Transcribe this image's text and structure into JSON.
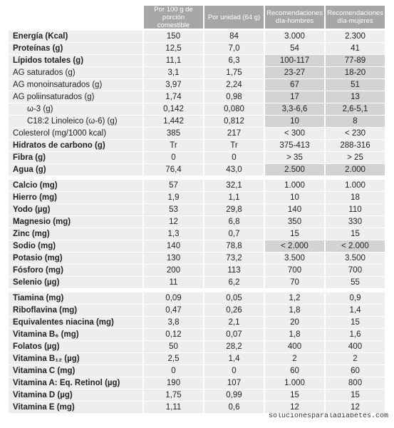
{
  "table": {
    "columns": [
      "Por 100 g de porción comestible",
      "Por unidad (64 g)",
      "Recomendaciones día-hombres",
      "Recomendaciones día-mujeres"
    ],
    "sections": [
      {
        "rows": [
          {
            "label": "Energía (Kcal)",
            "values": [
              "150",
              "84",
              "3.000",
              "2.300"
            ]
          },
          {
            "label": "Proteínas (g)",
            "values": [
              "12,5",
              "7,0",
              "54",
              "41"
            ]
          },
          {
            "label": "Lípidos totales (g)",
            "values": [
              "11,1",
              "6,3",
              "100-117",
              "77-89"
            ]
          },
          {
            "label": "AG saturados (g)",
            "values": [
              "3,1",
              "1,75",
              "23-27",
              "18-20"
            ]
          },
          {
            "label": "AG monoinsaturados (g)",
            "values": [
              "3,97",
              "2,24",
              "67",
              "51"
            ]
          },
          {
            "label": "AG poliinsaturados (g)",
            "values": [
              "1,74",
              "0,98",
              "17",
              "13"
            ]
          },
          {
            "label": "ω-3 (g)",
            "values": [
              "0,142",
              "0,080",
              "3,3-6,6",
              "2,6-5,1"
            ]
          },
          {
            "label": "C18:2 Linoleico (ω-6) (g)",
            "values": [
              "1,442",
              "0,812",
              "10",
              "8"
            ]
          },
          {
            "label": "Colesterol (mg/1000 kcal)",
            "values": [
              "385",
              "217",
              "< 300",
              "< 230"
            ]
          },
          {
            "label": "Hidratos de carbono (g)",
            "values": [
              "Tr",
              "Tr",
              "375-413",
              "288-316"
            ]
          },
          {
            "label": "Fibra (g)",
            "values": [
              "0",
              "0",
              "> 35",
              "> 25"
            ]
          },
          {
            "label": "Agua (g)",
            "values": [
              "76,4",
              "43,0",
              "2.500",
              "2.000"
            ]
          }
        ]
      },
      {
        "rows": [
          {
            "label": "Calcio (mg)",
            "values": [
              "57",
              "32,1",
              "1.000",
              "1.000"
            ]
          },
          {
            "label": "Hierro (mg)",
            "values": [
              "1,9",
              "1,1",
              "10",
              "18"
            ]
          },
          {
            "label": "Yodo (µg)",
            "values": [
              "53",
              "29,8",
              "140",
              "110"
            ]
          },
          {
            "label": "Magnesio (mg)",
            "values": [
              "12",
              "6,8",
              "350",
              "330"
            ]
          },
          {
            "label": "Zinc (mg)",
            "values": [
              "1,3",
              "0,7",
              "15",
              "15"
            ]
          },
          {
            "label": "Sodio (mg)",
            "values": [
              "140",
              "78,8",
              "< 2.000",
              "< 2.000"
            ]
          },
          {
            "label": "Potasio (mg)",
            "values": [
              "130",
              "73,2",
              "3.500",
              "3.500"
            ]
          },
          {
            "label": "Fósforo (mg)",
            "values": [
              "200",
              "113",
              "700",
              "700"
            ]
          },
          {
            "label": "Selenio (µg)",
            "values": [
              "11",
              "6,2",
              "70",
              "55"
            ]
          }
        ]
      },
      {
        "rows": [
          {
            "label": "Tiamina (mg)",
            "values": [
              "0,09",
              "0,05",
              "1,2",
              "0,9"
            ]
          },
          {
            "label": "Riboflavina (mg)",
            "values": [
              "0,47",
              "0,26",
              "1,8",
              "1,4"
            ]
          },
          {
            "label": "Equivalentes niacina (mg)",
            "values": [
              "3,8",
              "2,1",
              "20",
              "15"
            ]
          },
          {
            "label": "Vitamina B₆ (mg)",
            "values": [
              "0,12",
              "0,07",
              "1,8",
              "1,6"
            ]
          },
          {
            "label": "Folatos (µg)",
            "values": [
              "50",
              "28,2",
              "400",
              "400"
            ]
          },
          {
            "label": "Vitamina B₁₂ (µg)",
            "values": [
              "2,5",
              "1,4",
              "2",
              "2"
            ]
          },
          {
            "label": "Vitamina C (mg)",
            "values": [
              "0",
              "0",
              "60",
              "60"
            ]
          },
          {
            "label": "Vitamina A: Eq. Retinol (µg)",
            "values": [
              "190",
              "107",
              "1.000",
              "800"
            ]
          },
          {
            "label": "Vitamina D (µg)",
            "values": [
              "1,75",
              "0,99",
              "15",
              "15"
            ]
          },
          {
            "label": "Vitamina E (mg)",
            "values": [
              "1,11",
              "0,6",
              "12",
              "12"
            ]
          }
        ]
      }
    ]
  },
  "watermark": "solucionesparaladiabetes.com"
}
